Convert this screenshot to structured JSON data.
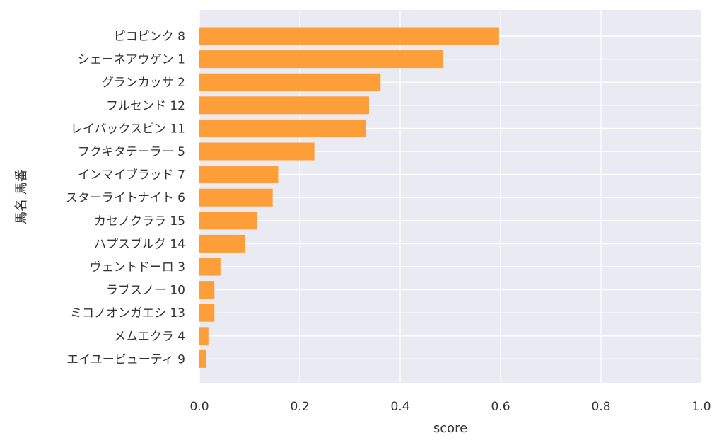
{
  "chart_data": {
    "type": "bar",
    "orientation": "horizontal",
    "title": "",
    "xlabel": "score",
    "ylabel": "馬名 馬番",
    "xlim": [
      0,
      1.0
    ],
    "xticks": [
      "0.0",
      "0.2",
      "0.4",
      "0.6",
      "0.8",
      "1.0"
    ],
    "xtick_values": [
      0,
      0.2,
      0.4,
      0.6,
      0.8,
      1.0
    ],
    "grid": true,
    "categories": [
      "ピコピンク 8",
      "シェーネアウゲン 1",
      "グランカッサ 2",
      "フルセンド 12",
      "レイバックスピン 11",
      "フクキタテーラー 5",
      "インマイブラッド 7",
      "スターライトナイト 6",
      "カセノクララ 15",
      "ハプスブルグ 14",
      "ヴェントドーロ 3",
      "ラブスノー 10",
      "ミコノオンガエシ 13",
      "メムエクラ 4",
      "エイユービューティ 9"
    ],
    "values": [
      0.597,
      0.486,
      0.361,
      0.338,
      0.331,
      0.229,
      0.157,
      0.146,
      0.115,
      0.091,
      0.042,
      0.03,
      0.03,
      0.018,
      0.013
    ],
    "colors": {
      "bar": "#ff9a2e",
      "background": "#eaeaf2",
      "grid": "#ffffff",
      "text": "#333333"
    }
  }
}
